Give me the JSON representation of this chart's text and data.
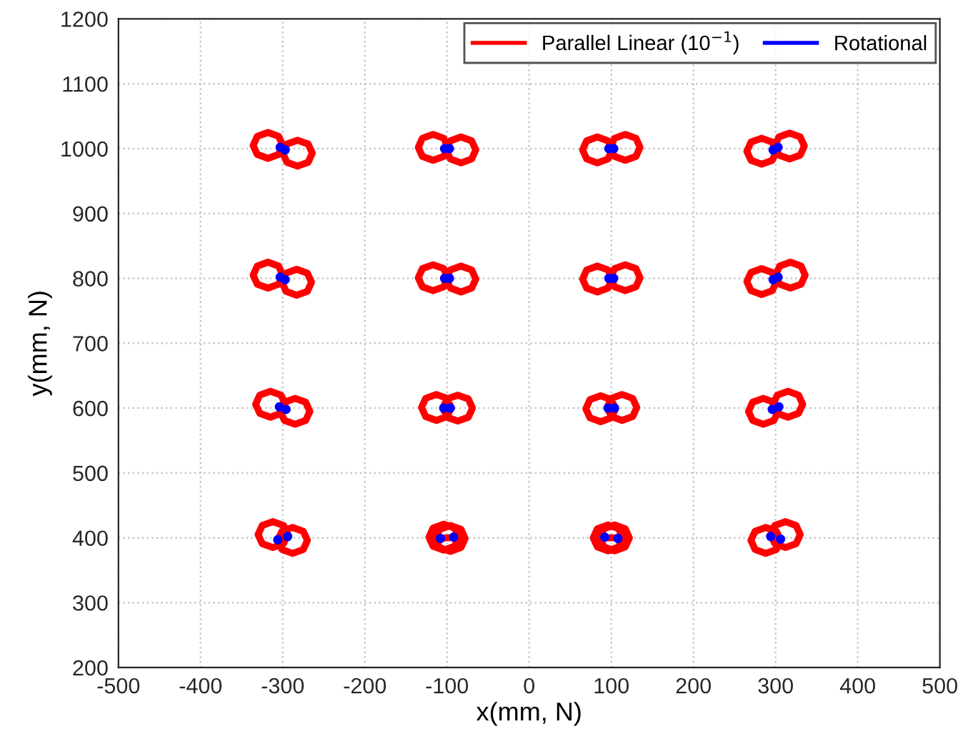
{
  "chart_data": {
    "type": "line",
    "xlabel": "x(mm, N)",
    "ylabel": "y(mm, N)",
    "xlim": [
      -500,
      500
    ],
    "xticks": [
      -500,
      -400,
      -300,
      -200,
      -100,
      0,
      100,
      200,
      300,
      400,
      500
    ],
    "ylim": [
      200,
      1200
    ],
    "yticks": [
      200,
      300,
      400,
      500,
      600,
      700,
      800,
      900,
      1000,
      1100,
      1200
    ],
    "grid": true,
    "legend": "top right",
    "series": [
      {
        "name": "Parallel Linear (10$^{−1}$)",
        "color": "#ff0000",
        "x": [
          -300,
          -305,
          -318,
          -331,
          -336,
          -331,
          -318,
          -305,
          -300,
          -300,
          -295,
          -282,
          -269,
          -264,
          -269,
          -282,
          -295,
          -300
        ],
        "values": [
          1005,
          1019,
          1025,
          1019,
          1005,
          991,
          985,
          991,
          1005,
          993,
          979,
          973,
          979,
          993,
          1007,
          1013,
          1007,
          993
        ]
      },
      {
        "color": "#ff0000",
        "x": [
          -99,
          -104,
          -117,
          -130,
          -135,
          -130,
          -117,
          -104,
          -99,
          -101,
          -96,
          -83,
          -70,
          -65,
          -70,
          -83,
          -96,
          -101
        ],
        "values": [
          1002,
          1016,
          1022,
          1016,
          1002,
          988,
          982,
          988,
          1002,
          998,
          984,
          978,
          984,
          998,
          1012,
          1018,
          1012,
          998
        ]
      },
      {
        "color": "#ff0000",
        "x": [
          101,
          96,
          83,
          70,
          65,
          70,
          83,
          96,
          101,
          99,
          104,
          117,
          130,
          135,
          130,
          117,
          104,
          99
        ],
        "values": [
          998,
          1012,
          1018,
          1012,
          998,
          984,
          978,
          984,
          998,
          1002,
          988,
          982,
          988,
          1002,
          1016,
          1022,
          1016,
          1002
        ]
      },
      {
        "color": "#ff0000",
        "x": [
          301,
          296,
          283,
          270,
          265,
          270,
          283,
          296,
          301,
          299,
          304,
          317,
          330,
          335,
          330,
          317,
          304,
          299
        ],
        "values": [
          996,
          1010,
          1016,
          1010,
          996,
          982,
          976,
          982,
          996,
          1004,
          990,
          984,
          990,
          1004,
          1018,
          1024,
          1018,
          1004
        ]
      },
      {
        "color": "#ff0000",
        "x": [
          -300,
          -305,
          -318,
          -331,
          -336,
          -331,
          -318,
          -305,
          -300,
          -301,
          -296,
          -283,
          -270,
          -265,
          -270,
          -283,
          -296,
          -301
        ],
        "values": [
          805,
          819,
          825,
          819,
          805,
          791,
          785,
          791,
          805,
          794,
          780,
          774,
          780,
          794,
          808,
          814,
          808,
          794
        ]
      },
      {
        "color": "#ff0000",
        "x": [
          -99,
          -104,
          -117,
          -130,
          -135,
          -130,
          -117,
          -104,
          -99,
          -101,
          -96,
          -83,
          -70,
          -65,
          -70,
          -83,
          -96,
          -101
        ],
        "values": [
          801,
          815,
          821,
          815,
          801,
          787,
          781,
          787,
          801,
          799,
          785,
          779,
          785,
          799,
          813,
          819,
          813,
          799
        ]
      },
      {
        "color": "#ff0000",
        "x": [
          101,
          96,
          83,
          70,
          65,
          70,
          83,
          96,
          101,
          99,
          104,
          117,
          130,
          135,
          130,
          117,
          104,
          99
        ],
        "values": [
          799,
          813,
          819,
          813,
          799,
          785,
          779,
          785,
          799,
          801,
          787,
          781,
          787,
          801,
          815,
          821,
          815,
          801
        ]
      },
      {
        "color": "#ff0000",
        "x": [
          301,
          296,
          283,
          270,
          265,
          270,
          283,
          296,
          301,
          300,
          305,
          318,
          331,
          336,
          331,
          318,
          305,
          300
        ],
        "values": [
          795,
          809,
          815,
          809,
          795,
          781,
          775,
          781,
          795,
          805,
          791,
          785,
          791,
          805,
          819,
          825,
          819,
          805
        ]
      },
      {
        "color": "#ff0000",
        "x": [
          -297,
          -302,
          -315,
          -328,
          -333,
          -328,
          -315,
          -302,
          -297,
          -303,
          -298,
          -285,
          -272,
          -267,
          -272,
          -285,
          -298,
          -303
        ],
        "values": [
          606,
          620,
          626,
          620,
          606,
          592,
          586,
          592,
          606,
          595,
          581,
          575,
          581,
          595,
          609,
          615,
          609,
          595
        ]
      },
      {
        "color": "#ff0000",
        "x": [
          -95,
          -100,
          -113,
          -126,
          -131,
          -126,
          -113,
          -100,
          -95,
          -105,
          -100,
          -87,
          -74,
          -69,
          -74,
          -87,
          -100,
          -105
        ],
        "values": [
          601,
          615,
          621,
          615,
          601,
          587,
          581,
          587,
          601,
          600,
          586,
          580,
          586,
          600,
          614,
          620,
          614,
          600
        ]
      },
      {
        "color": "#ff0000",
        "x": [
          105,
          100,
          87,
          74,
          69,
          74,
          87,
          100,
          105,
          95,
          100,
          113,
          126,
          131,
          126,
          113,
          100,
          95
        ],
        "values": [
          599,
          613,
          619,
          613,
          599,
          585,
          579,
          585,
          599,
          601,
          587,
          581,
          587,
          601,
          615,
          621,
          615,
          601
        ]
      },
      {
        "color": "#ff0000",
        "x": [
          303,
          298,
          285,
          272,
          267,
          272,
          285,
          298,
          303,
          297,
          302,
          315,
          328,
          333,
          328,
          315,
          302,
          297
        ],
        "values": [
          595,
          609,
          615,
          609,
          595,
          581,
          575,
          581,
          595,
          606,
          592,
          586,
          592,
          606,
          620,
          626,
          620,
          606
        ]
      },
      {
        "color": "#ff0000",
        "x": [
          -294,
          -299,
          -312,
          -325,
          -330,
          -325,
          -312,
          -299,
          -294,
          -306,
          -301,
          -288,
          -275,
          -270,
          -275,
          -288,
          -301,
          -306
        ],
        "values": [
          405,
          419,
          425,
          419,
          405,
          391,
          385,
          391,
          405,
          396,
          382,
          376,
          382,
          396,
          410,
          416,
          410,
          396
        ]
      },
      {
        "color": "#ff0000",
        "x": [
          -86,
          -91,
          -104,
          -117,
          -122,
          -117,
          -104,
          -91,
          -86,
          -114,
          -109,
          -96,
          -83,
          -78,
          -83,
          -96,
          -109,
          -114
        ],
        "values": [
          401,
          415,
          421,
          415,
          401,
          387,
          381,
          387,
          401,
          399,
          385,
          379,
          385,
          399,
          413,
          419,
          413,
          399
        ]
      },
      {
        "color": "#ff0000",
        "x": [
          114,
          109,
          96,
          83,
          78,
          83,
          96,
          109,
          114,
          86,
          91,
          104,
          117,
          122,
          117,
          104,
          91,
          86
        ],
        "values": [
          400,
          414,
          420,
          414,
          400,
          386,
          380,
          386,
          400,
          400,
          386,
          380,
          386,
          400,
          414,
          420,
          414,
          400
        ]
      },
      {
        "color": "#ff0000",
        "x": [
          306,
          301,
          288,
          275,
          270,
          275,
          288,
          301,
          306,
          294,
          299,
          312,
          325,
          330,
          325,
          312,
          299,
          294
        ],
        "values": [
          396,
          410,
          416,
          410,
          396,
          382,
          376,
          382,
          396,
          405,
          391,
          385,
          391,
          405,
          419,
          425,
          419,
          405
        ]
      },
      {
        "name": "Rotational",
        "type": "scatter",
        "marker": "circle",
        "color": "#0000ff",
        "x": [
          -303,
          -297,
          -103,
          -97,
          97,
          103,
          297,
          303,
          -303,
          -297,
          -103,
          -97,
          97,
          103,
          297,
          303,
          -304,
          -296,
          -104,
          -96,
          96,
          104,
          296,
          304,
          -306,
          -294,
          -108,
          -92,
          92,
          108,
          294,
          306
        ],
        "values": [
          1002,
          998,
          1000,
          1000,
          1000,
          1000,
          998,
          1002,
          802,
          798,
          800,
          800,
          800,
          800,
          798,
          802,
          602,
          598,
          600,
          600,
          600,
          600,
          598,
          602,
          397,
          402,
          399,
          401,
          401,
          399,
          402,
          398
        ]
      }
    ]
  }
}
